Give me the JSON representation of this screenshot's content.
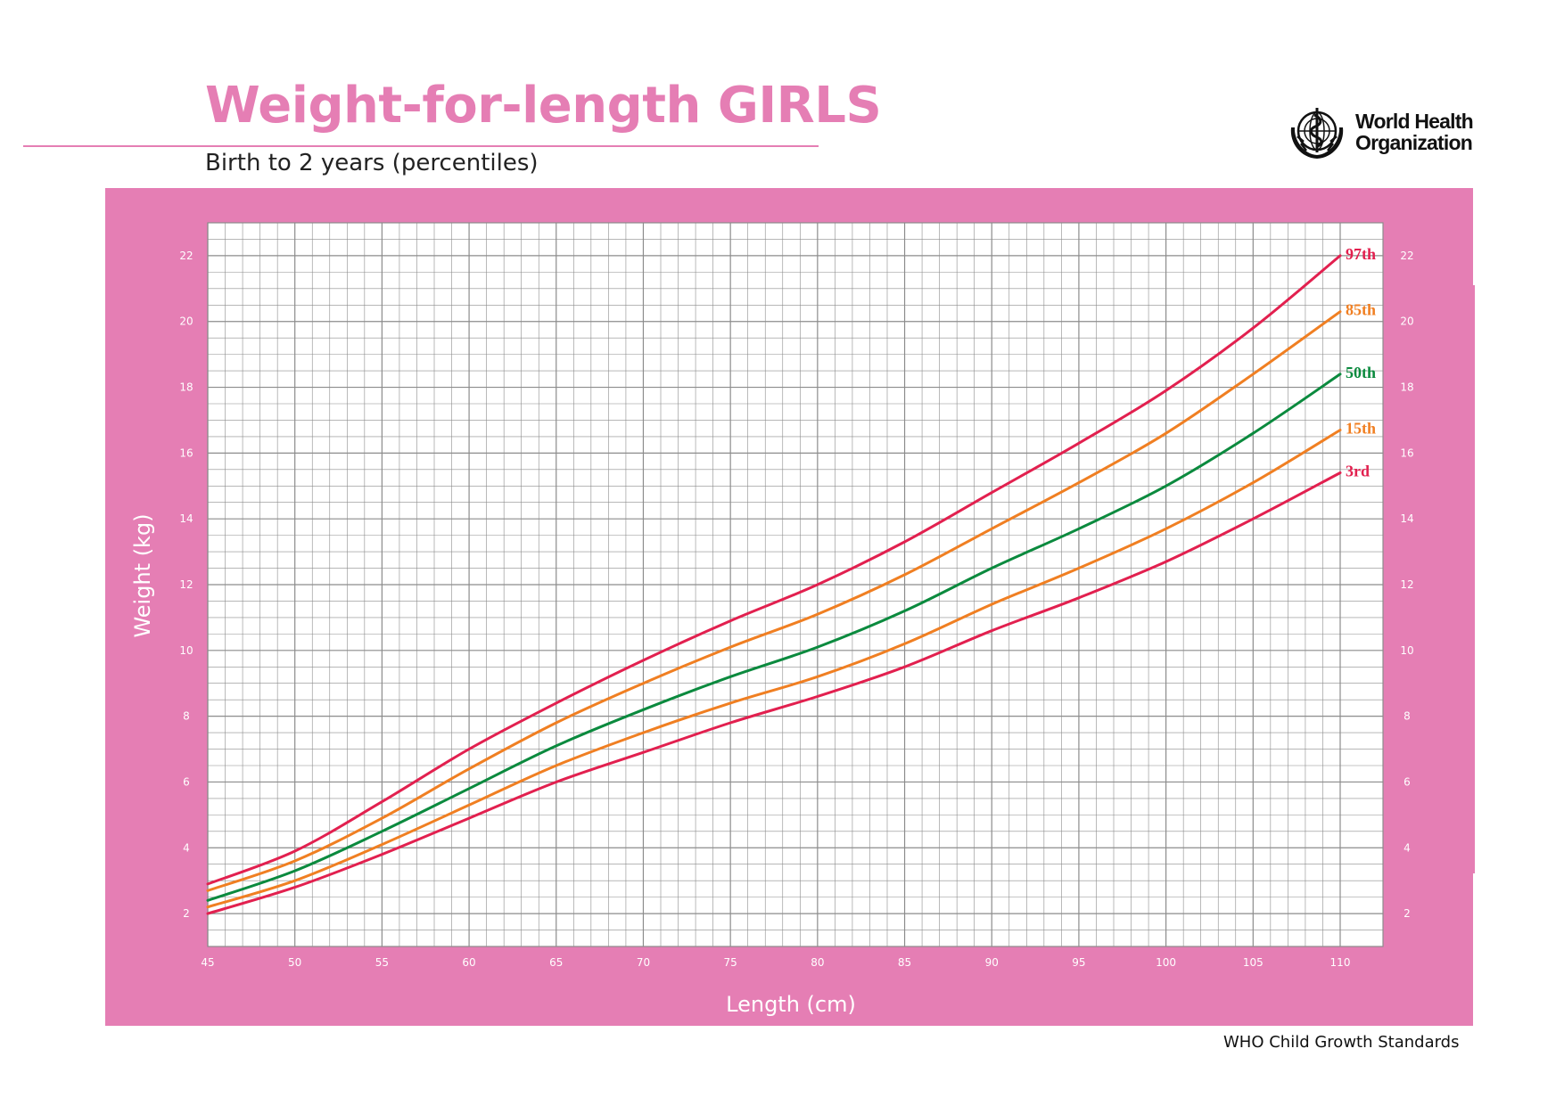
{
  "header": {
    "title": "Weight-for-length GIRLS",
    "subtitle": "Birth to 2 years (percentiles)",
    "org_line1": "World Health",
    "org_line2": "Organization"
  },
  "footer": {
    "text": "WHO Child Growth Standards"
  },
  "colors": {
    "brand_pink": "#e57eb4",
    "frame_pink": "#e57eb4",
    "line_red": "#e2204f",
    "line_orange": "#f07f22",
    "line_green": "#0b8a3e",
    "grid": "#8c8c8c"
  },
  "chart_data": {
    "type": "line",
    "title": "Weight-for-length GIRLS",
    "subtitle": "Birth to 2 years (percentiles)",
    "xlabel": "Length (cm)",
    "ylabel": "Weight (kg)",
    "xlim": [
      45,
      110
    ],
    "ylim": [
      1,
      23
    ],
    "xticks": [
      45,
      50,
      55,
      60,
      65,
      70,
      75,
      80,
      85,
      90,
      95,
      100,
      105,
      110
    ],
    "yticks": [
      2,
      4,
      6,
      8,
      10,
      12,
      14,
      16,
      18,
      20,
      22
    ],
    "grid": true,
    "x": [
      45,
      50,
      55,
      60,
      65,
      70,
      75,
      80,
      85,
      90,
      95,
      100,
      105,
      110
    ],
    "series": [
      {
        "name": "97th",
        "color": "#e2204f",
        "values": [
          2.9,
          3.9,
          5.4,
          7.0,
          8.4,
          9.7,
          10.9,
          12.0,
          13.3,
          14.8,
          16.3,
          17.9,
          19.8,
          22.0
        ]
      },
      {
        "name": "85th",
        "color": "#f07f22",
        "values": [
          2.7,
          3.6,
          4.9,
          6.4,
          7.8,
          9.0,
          10.1,
          11.1,
          12.3,
          13.7,
          15.1,
          16.6,
          18.4,
          20.3
        ]
      },
      {
        "name": "50th",
        "color": "#0b8a3e",
        "values": [
          2.4,
          3.3,
          4.5,
          5.8,
          7.1,
          8.2,
          9.2,
          10.1,
          11.2,
          12.5,
          13.7,
          15.0,
          16.6,
          18.4
        ]
      },
      {
        "name": "15th",
        "color": "#f07f22",
        "values": [
          2.2,
          3.0,
          4.1,
          5.3,
          6.5,
          7.5,
          8.4,
          9.2,
          10.2,
          11.4,
          12.5,
          13.7,
          15.1,
          16.7
        ]
      },
      {
        "name": "3rd",
        "color": "#e2204f",
        "values": [
          2.0,
          2.8,
          3.8,
          4.9,
          6.0,
          6.9,
          7.8,
          8.6,
          9.5,
          10.6,
          11.6,
          12.7,
          14.0,
          15.4
        ]
      }
    ]
  }
}
